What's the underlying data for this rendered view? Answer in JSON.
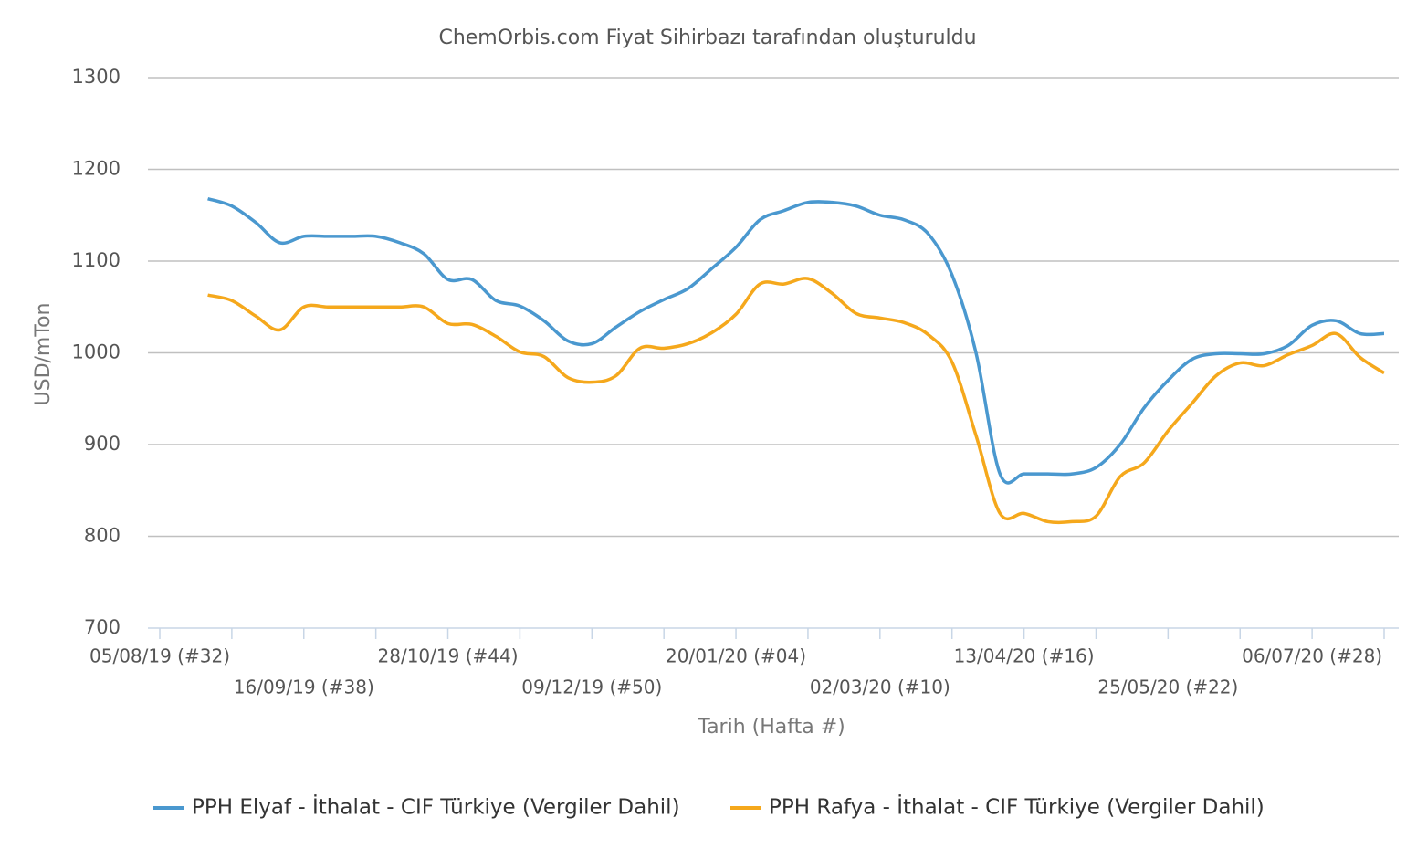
{
  "chart_data": {
    "type": "line",
    "title": "ChemOrbis.com Fiyat Sihirbazı tarafından oluşturuldu",
    "x_label": "Tarih (Hafta #)",
    "y_label": "USD/mTon",
    "categories": [
      "05/08/19 (#32)",
      null,
      null,
      null,
      null,
      null,
      "16/09/19 (#38)",
      null,
      null,
      null,
      null,
      null,
      "28/10/19 (#44)",
      null,
      null,
      null,
      null,
      null,
      "09/12/19 (#50)",
      null,
      null,
      null,
      null,
      null,
      "20/01/20 (#04)",
      null,
      null,
      null,
      null,
      null,
      "02/03/20 (#10)",
      null,
      null,
      null,
      null,
      null,
      "13/04/20 (#16)",
      null,
      null,
      null,
      null,
      null,
      "25/05/20 (#22)",
      null,
      null,
      null,
      null,
      null,
      "06/07/20 (#28)",
      null,
      null,
      null
    ],
    "series": [
      {
        "name": "PPH Elyaf - İthalat - CIF Türkiye (Vergiler Dahil)",
        "color": "#4a98cf",
        "values": [
          null,
          null,
          1168,
          1160,
          1142,
          1120,
          1127,
          1127,
          1127,
          1127,
          1120,
          1108,
          1080,
          1080,
          1057,
          1051,
          1035,
          1013,
          1010,
          1028,
          1045,
          1058,
          1070,
          1092,
          1115,
          1145,
          1155,
          1164,
          1164,
          1160,
          1150,
          1145,
          1130,
          1085,
          1000,
          868,
          868,
          868,
          868,
          875,
          900,
          940,
          970,
          993,
          999,
          999,
          999,
          1008,
          1030,
          1035,
          1021,
          1021
        ]
      },
      {
        "name": "PPH Rafya - İthalat - CIF Türkiye (Vergiler Dahil)",
        "color": "#f5a81c",
        "values": [
          null,
          null,
          1063,
          1057,
          1040,
          1025,
          1050,
          1050,
          1050,
          1050,
          1050,
          1050,
          1032,
          1031,
          1018,
          1001,
          996,
          973,
          968,
          975,
          1005,
          1005,
          1010,
          1022,
          1042,
          1075,
          1075,
          1081,
          1065,
          1043,
          1038,
          1033,
          1020,
          990,
          910,
          825,
          825,
          816,
          816,
          822,
          865,
          880,
          915,
          945,
          975,
          989,
          986,
          998,
          1008,
          1021,
          995,
          978
        ]
      }
    ],
    "ylim": [
      700,
      1300
    ],
    "yticks": [
      700,
      800,
      900,
      1000,
      1100,
      1200,
      1300
    ],
    "grid": true,
    "legend": "bottom"
  }
}
